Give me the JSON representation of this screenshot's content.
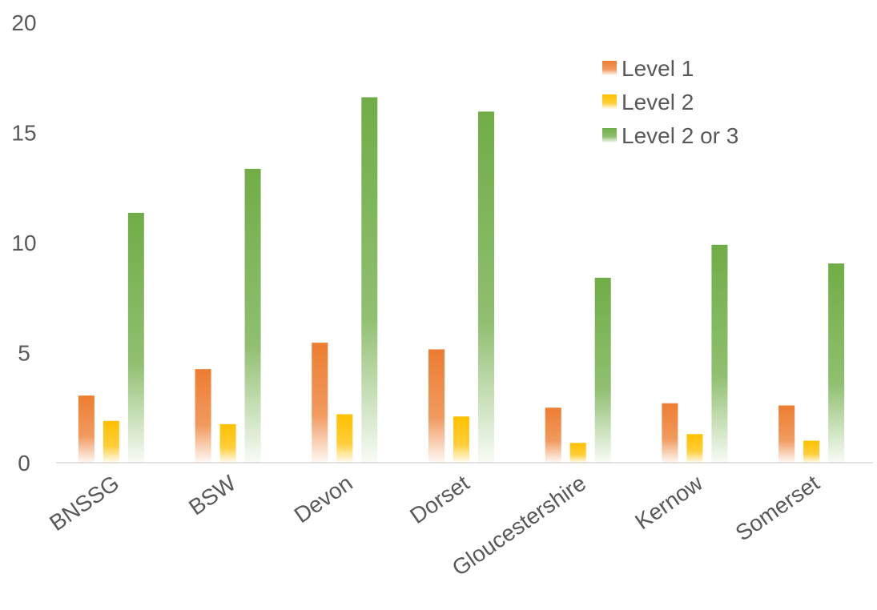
{
  "chart_data": {
    "type": "bar",
    "categories": [
      "BNSSG",
      "BSW",
      "Devon",
      "Dorset",
      "Gloucestershire",
      "Kernow",
      "Somerset"
    ],
    "series": [
      {
        "name": "Level 1",
        "values": [
          3.05,
          4.25,
          5.45,
          5.15,
          2.5,
          2.7,
          2.6
        ],
        "color": "#ED7D31"
      },
      {
        "name": "Level 2",
        "values": [
          1.9,
          1.75,
          2.2,
          2.1,
          0.9,
          1.3,
          1.0
        ],
        "color": "#FFC000"
      },
      {
        "name": "Level 2 or 3",
        "values": [
          11.35,
          13.35,
          16.6,
          15.95,
          8.4,
          9.9,
          9.05
        ],
        "color": "#70AD47"
      }
    ],
    "y_ticks": [
      "0",
      "5",
      "10",
      "15",
      "20"
    ],
    "ylim": [
      0,
      20
    ],
    "grid": false,
    "legend_position": "top-right",
    "title": "",
    "xlabel": "",
    "ylabel": ""
  }
}
